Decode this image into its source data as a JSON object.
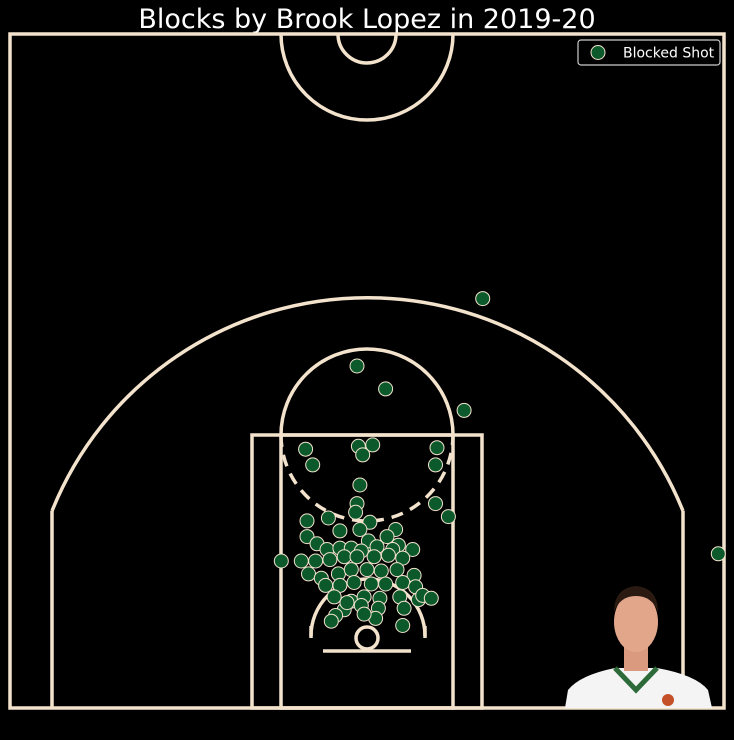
{
  "chart_data": {
    "type": "scatter",
    "title": "Blocks by Brook Lopez in 2019-20",
    "xlabel": "",
    "ylabel": "",
    "xlim": [
      -250,
      250
    ],
    "ylim": [
      -47.5,
      422.5
    ],
    "grid": false,
    "legend_position": "top-right",
    "series": [
      {
        "name": "Blocked Shot",
        "marker_color": "#0c5a2c",
        "edge_color": "#f3e3cd",
        "points": [
          [
            81,
            238
          ],
          [
            -7,
            191
          ],
          [
            13,
            175
          ],
          [
            68,
            160
          ],
          [
            -6,
            135
          ],
          [
            4,
            136
          ],
          [
            -43,
            133
          ],
          [
            -3,
            129
          ],
          [
            49,
            134
          ],
          [
            -38,
            122
          ],
          [
            48,
            122
          ],
          [
            -5,
            108
          ],
          [
            -7,
            95
          ],
          [
            48,
            95
          ],
          [
            -27,
            85
          ],
          [
            -42,
            83
          ],
          [
            57,
            86
          ],
          [
            -19,
            76
          ],
          [
            -8,
            89
          ],
          [
            2,
            82
          ],
          [
            -5,
            77
          ],
          [
            20,
            77
          ],
          [
            2,
            67
          ],
          [
            -42,
            72
          ],
          [
            -35,
            67
          ],
          [
            1,
            69
          ],
          [
            14,
            72
          ],
          [
            22,
            66
          ],
          [
            -28,
            63
          ],
          [
            -19,
            64
          ],
          [
            -11,
            64
          ],
          [
            -4,
            62
          ],
          [
            7,
            65
          ],
          [
            18,
            63
          ],
          [
            32,
            63
          ],
          [
            -60,
            55
          ],
          [
            -46,
            55
          ],
          [
            -36,
            55
          ],
          [
            -26,
            56
          ],
          [
            -16,
            58
          ],
          [
            -7,
            58
          ],
          [
            5,
            58
          ],
          [
            15,
            59
          ],
          [
            25,
            57
          ],
          [
            -41,
            46
          ],
          [
            -32,
            43
          ],
          [
            -20,
            46
          ],
          [
            -11,
            49
          ],
          [
            0,
            49
          ],
          [
            10,
            48
          ],
          [
            21,
            49
          ],
          [
            33,
            45
          ],
          [
            -29,
            38
          ],
          [
            -19,
            38
          ],
          [
            -9,
            40
          ],
          [
            3,
            39
          ],
          [
            13,
            39
          ],
          [
            25,
            40
          ],
          [
            34,
            37
          ],
          [
            -23,
            30
          ],
          [
            -11,
            27
          ],
          [
            -2,
            30
          ],
          [
            9,
            29
          ],
          [
            23,
            30
          ],
          [
            36,
            28
          ],
          [
            -16,
            21
          ],
          [
            -4,
            24
          ],
          [
            8,
            22
          ],
          [
            26,
            22
          ],
          [
            39,
            31
          ],
          [
            45,
            29
          ],
          [
            -22,
            17
          ],
          [
            -25,
            13
          ],
          [
            6,
            15
          ],
          [
            25,
            10
          ],
          [
            -2,
            18
          ],
          [
            -14,
            26
          ],
          [
            246,
            60
          ]
        ]
      }
    ]
  },
  "annotations": {
    "player_photo": "Brook Lopez headshot"
  }
}
